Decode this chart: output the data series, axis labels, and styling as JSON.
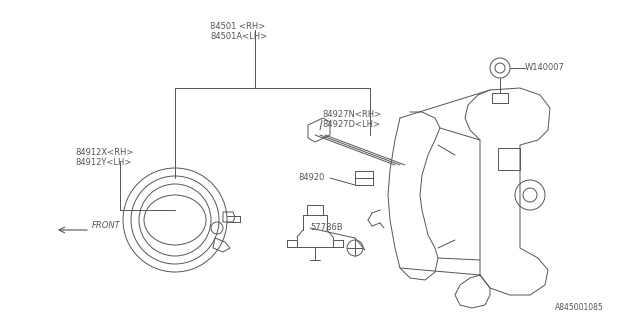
{
  "background_color": "#ffffff",
  "line_color": "#555555",
  "text_color": "#555555",
  "diagram_id": "A845001085",
  "fig_w": 6.4,
  "fig_h": 3.2,
  "dpi": 100,
  "label_84501": "84501 <RH>\n84501A<LH>",
  "label_84927": "84927N<RH>\n84927D<LH>",
  "label_84920": "84920",
  "label_57786B": "57786B",
  "label_84912": "84912X<RH>\n84912Y<LH>",
  "label_W140007": "W140007",
  "label_FRONT": "FRONT",
  "font_size": 6.0
}
